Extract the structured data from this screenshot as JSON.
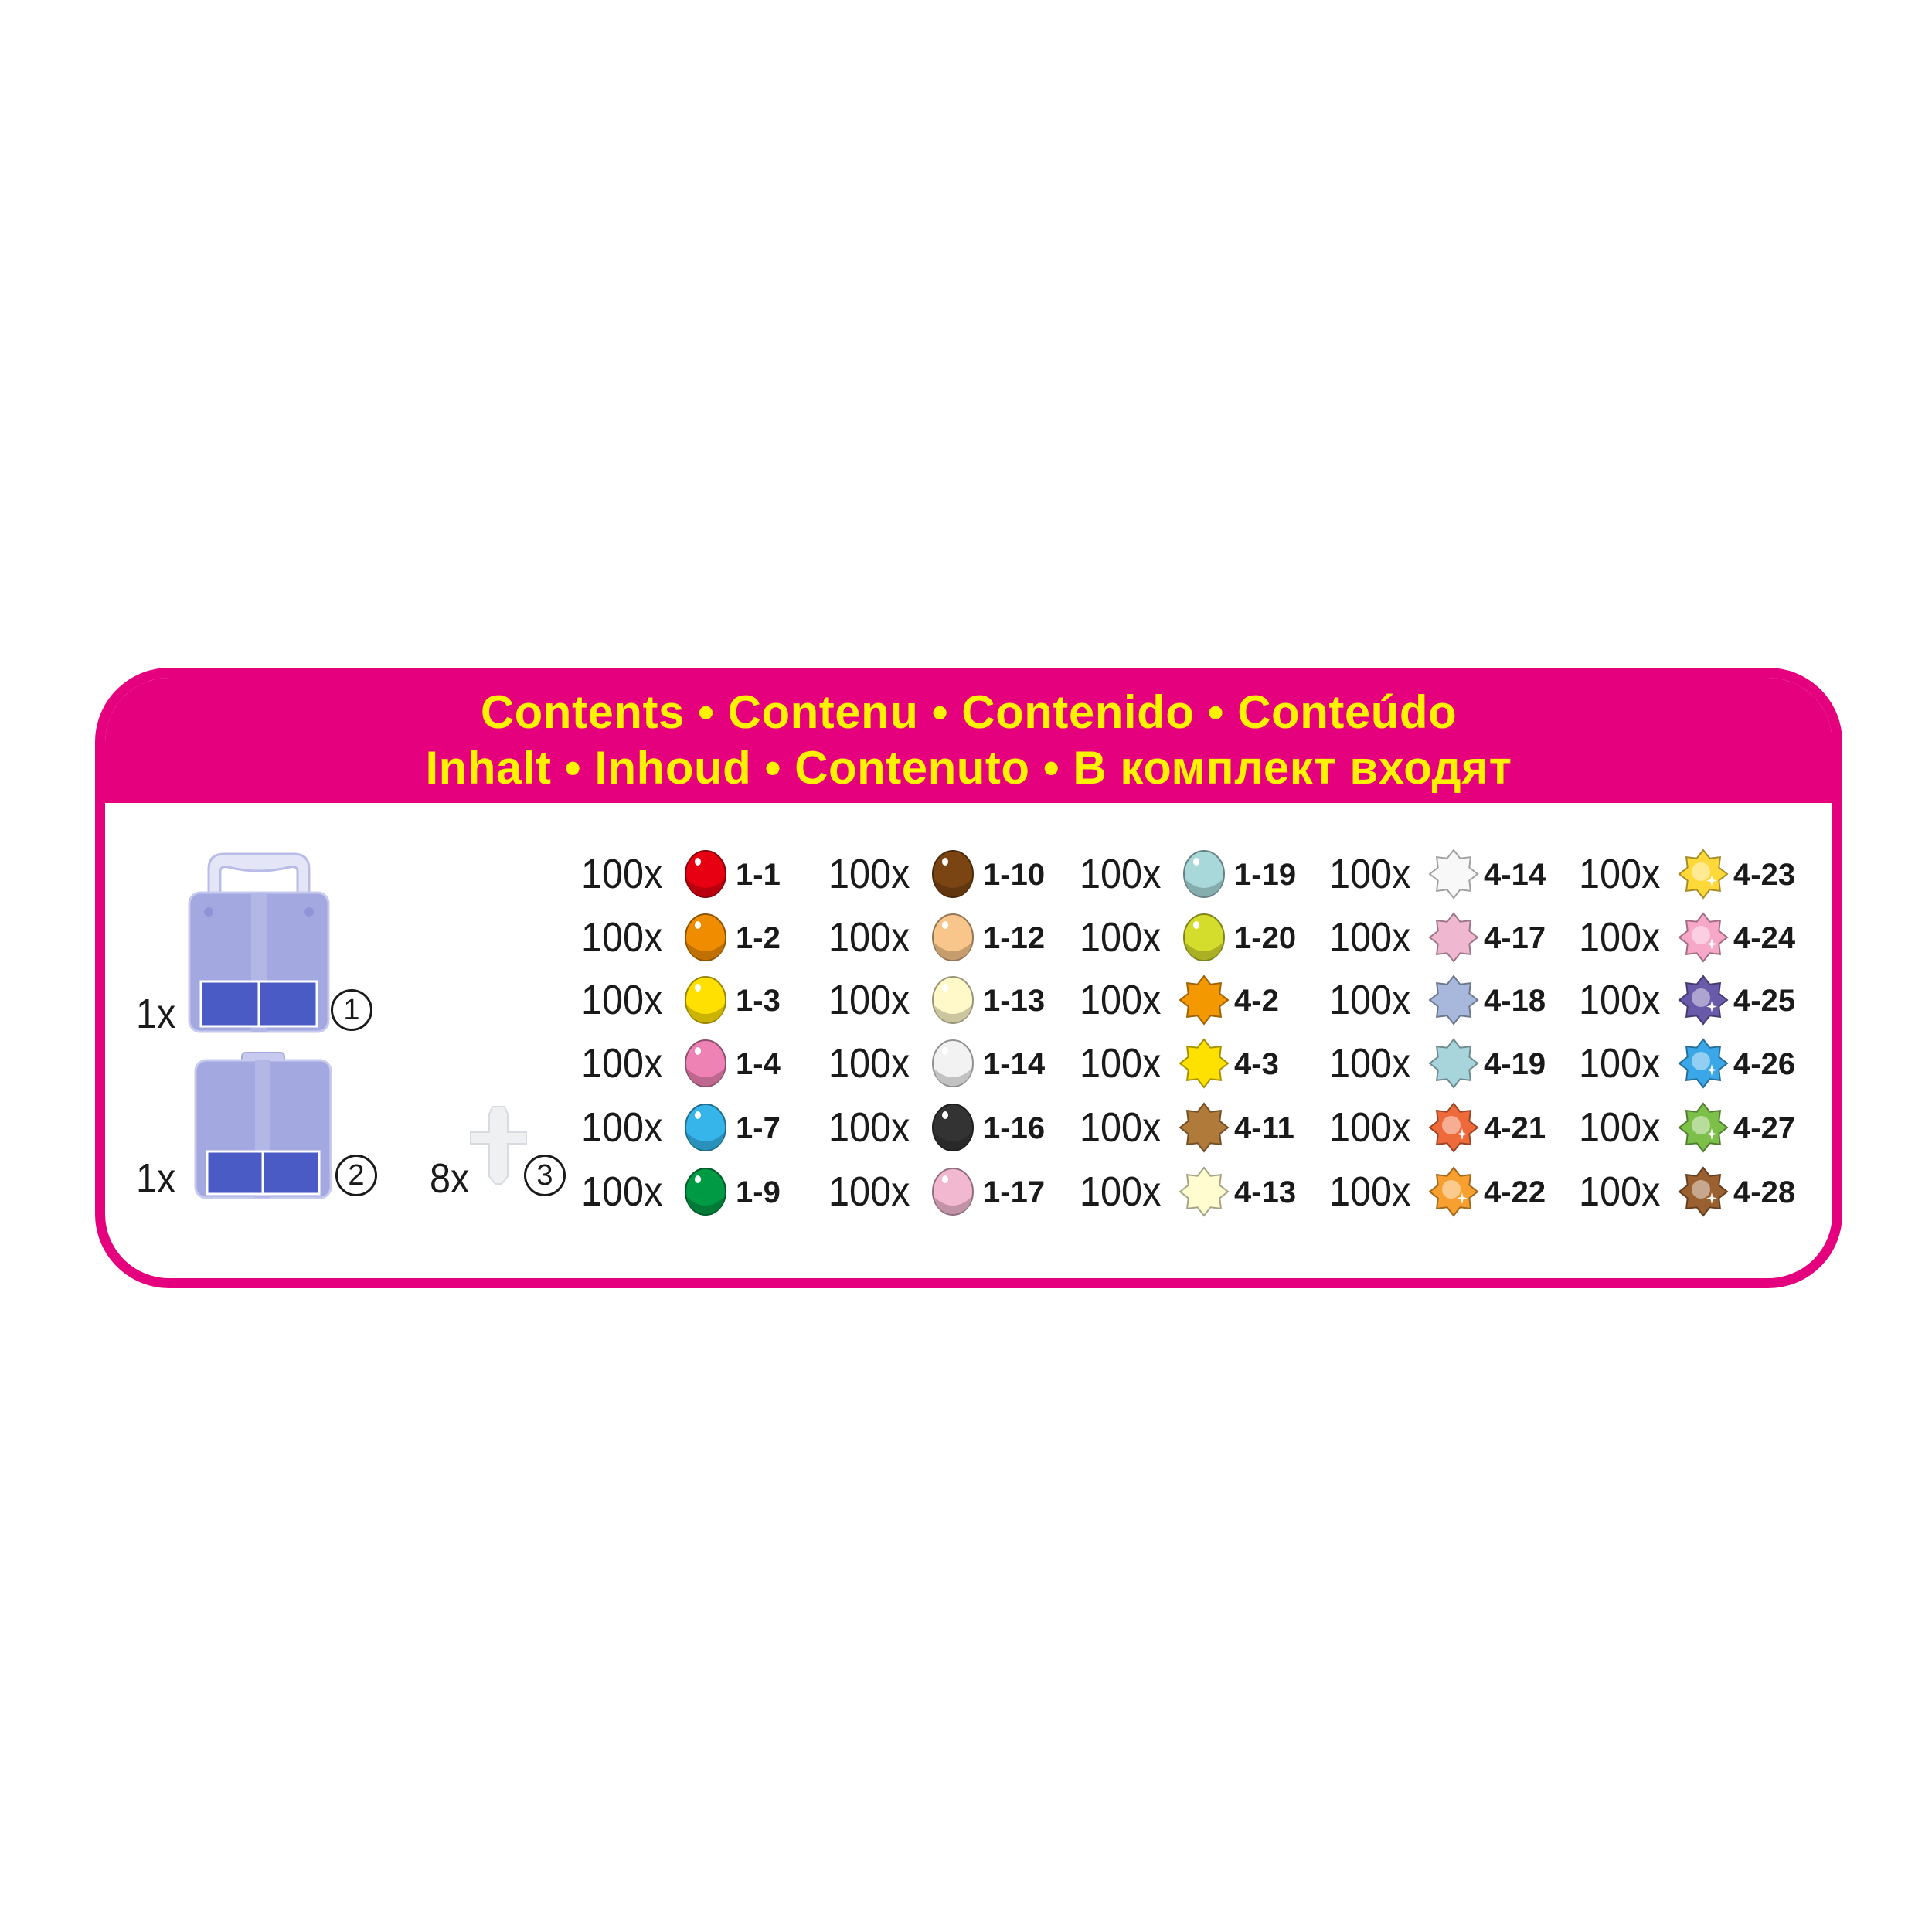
{
  "header": {
    "line1": "Contents • Contenu • Contenido • Conteúdo",
    "line2": "Inhalt • Inhoud • Contenuto • В комплект входят"
  },
  "colors": {
    "frame": "#E5007E",
    "title": "#FFF200",
    "case": "#A3A8E0",
    "case_dark": "#4B5BC6"
  },
  "accessories": [
    {
      "qty": "1x",
      "number": "1",
      "icon": "large-case-with-handle"
    },
    {
      "qty": "1x",
      "number": "2",
      "icon": "small-case"
    },
    {
      "qty": "8x",
      "number": "3",
      "icon": "connector-peg"
    }
  ],
  "beads": [
    [
      {
        "qty": "100x",
        "code": "1-1",
        "shape": "round",
        "color": "#E60012"
      },
      {
        "qty": "100x",
        "code": "1-2",
        "shape": "round",
        "color": "#F08C00"
      },
      {
        "qty": "100x",
        "code": "1-3",
        "shape": "round",
        "color": "#FFE000"
      },
      {
        "qty": "100x",
        "code": "1-4",
        "shape": "round",
        "color": "#EE82B4"
      },
      {
        "qty": "100x",
        "code": "1-7",
        "shape": "round",
        "color": "#35B5EA"
      },
      {
        "qty": "100x",
        "code": "1-9",
        "shape": "round",
        "color": "#009944"
      }
    ],
    [
      {
        "qty": "100x",
        "code": "1-10",
        "shape": "round",
        "color": "#7B4513"
      },
      {
        "qty": "100x",
        "code": "1-12",
        "shape": "round",
        "color": "#F8C58A"
      },
      {
        "qty": "100x",
        "code": "1-13",
        "shape": "round",
        "color": "#FFF8C8"
      },
      {
        "qty": "100x",
        "code": "1-14",
        "shape": "round",
        "color": "#F2F2F2"
      },
      {
        "qty": "100x",
        "code": "1-16",
        "shape": "round",
        "color": "#333333"
      },
      {
        "qty": "100x",
        "code": "1-17",
        "shape": "round",
        "color": "#F2B8D0"
      }
    ],
    [
      {
        "qty": "100x",
        "code": "1-19",
        "shape": "round",
        "color": "#A8D8DA"
      },
      {
        "qty": "100x",
        "code": "1-20",
        "shape": "round",
        "color": "#D4DC2C"
      },
      {
        "qty": "100x",
        "code": "4-2",
        "shape": "star",
        "color": "#F39800"
      },
      {
        "qty": "100x",
        "code": "4-3",
        "shape": "star",
        "color": "#FFE100"
      },
      {
        "qty": "100x",
        "code": "4-11",
        "shape": "star",
        "color": "#B07A3A"
      },
      {
        "qty": "100x",
        "code": "4-13",
        "shape": "star",
        "color": "#FFFCD0"
      }
    ],
    [
      {
        "qty": "100x",
        "code": "4-14",
        "shape": "star",
        "color": "#F8F8F8"
      },
      {
        "qty": "100x",
        "code": "4-17",
        "shape": "star",
        "color": "#F0B8D0"
      },
      {
        "qty": "100x",
        "code": "4-18",
        "shape": "star",
        "color": "#A8B8DC"
      },
      {
        "qty": "100x",
        "code": "4-19",
        "shape": "star",
        "color": "#A8D4DC"
      },
      {
        "qty": "100x",
        "code": "4-21",
        "shape": "sparkle-star",
        "color": "#EE6A3A"
      },
      {
        "qty": "100x",
        "code": "4-22",
        "shape": "sparkle-star",
        "color": "#F7A030"
      }
    ],
    [
      {
        "qty": "100x",
        "code": "4-23",
        "shape": "sparkle-star",
        "color": "#FFD83A"
      },
      {
        "qty": "100x",
        "code": "4-24",
        "shape": "sparkle-star",
        "color": "#F7A8C8"
      },
      {
        "qty": "100x",
        "code": "4-25",
        "shape": "sparkle-star",
        "color": "#6A5AAA"
      },
      {
        "qty": "100x",
        "code": "4-26",
        "shape": "sparkle-star",
        "color": "#3AA8E8"
      },
      {
        "qty": "100x",
        "code": "4-27",
        "shape": "sparkle-star",
        "color": "#7CC04A"
      },
      {
        "qty": "100x",
        "code": "4-28",
        "shape": "sparkle-star",
        "color": "#9A6030"
      }
    ]
  ]
}
